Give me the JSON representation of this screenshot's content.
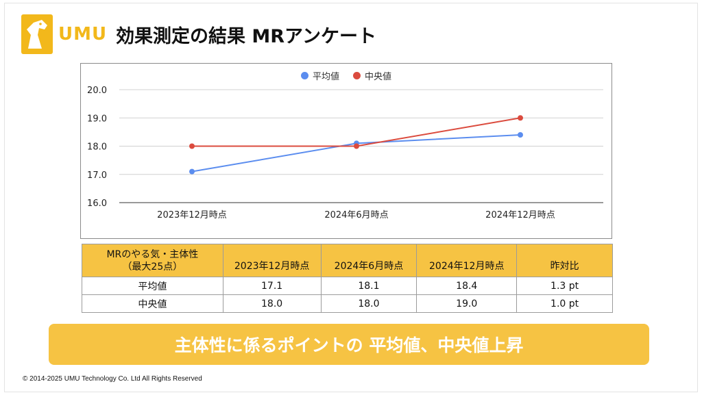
{
  "header": {
    "logo_text": "UMU",
    "title": "効果測定の結果 MRアンケート"
  },
  "chart_data": {
    "type": "line",
    "categories": [
      "2023年12月時点",
      "2024年6月時点",
      "2024年12月時点"
    ],
    "series": [
      {
        "name": "平均値",
        "values": [
          17.1,
          18.1,
          18.4
        ],
        "color": "#5b8def"
      },
      {
        "name": "中央値",
        "values": [
          18.0,
          18.0,
          19.0
        ],
        "color": "#db4b3e"
      }
    ],
    "ylim": [
      16.0,
      20.0
    ],
    "yticks": [
      "16.0",
      "17.0",
      "18.0",
      "19.0",
      "20.0"
    ],
    "grid": true,
    "legend_position": "top-center"
  },
  "table": {
    "headers": [
      "MRのやる気・主体性\n（最大25点）",
      "2023年12月時点",
      "2024年6月時点",
      "2024年12月時点",
      "昨対比"
    ],
    "rows": [
      [
        "平均値",
        "17.1",
        "18.1",
        "18.4",
        "1.3 pt"
      ],
      [
        "中央値",
        "18.0",
        "18.0",
        "19.0",
        "1.0 pt"
      ]
    ]
  },
  "banner": {
    "text": "主体性に係るポイントの 平均値、中央値上昇"
  },
  "footer": {
    "copyright": "© 2014-2025 UMU Technology Co. Ltd All Rights Reserved"
  },
  "colors": {
    "accent": "#f6c343",
    "logo": "#f2b81b"
  }
}
